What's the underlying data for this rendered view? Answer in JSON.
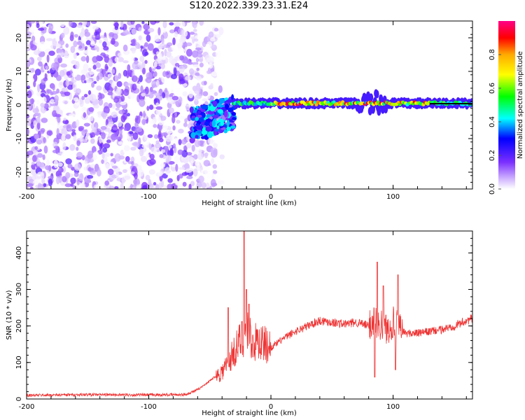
{
  "title": "S120.2022.339.23.31.E24",
  "colors": {
    "snr_line": "#ee3333",
    "axis": "#000000"
  },
  "chart_data": [
    {
      "type": "heatmap",
      "name": "spectrogram",
      "xlabel": "Height of straight line (km)",
      "ylabel": "Frequency (Hz)",
      "xlim": [
        -200,
        165
      ],
      "ylim": [
        -25,
        25
      ],
      "x_ticks": [
        -200,
        -100,
        0,
        100
      ],
      "y_ticks": [
        -20,
        -10,
        0,
        10,
        20
      ],
      "colorbar": {
        "label": "Normalized spectral amplitude",
        "range": [
          0,
          1
        ],
        "ticks": [
          0.0,
          0.2,
          0.4,
          0.6,
          0.8
        ],
        "tick_labels": [
          "0.0",
          "0.2",
          "0.4",
          "0.6",
          "0.8"
        ],
        "colormap": [
          "#ffffff",
          "#7b2fff",
          "#0000ff",
          "#00ffff",
          "#00ff00",
          "#ffff00",
          "#ff0000",
          "#ff0088"
        ]
      },
      "regions": [
        {
          "x_range": [
            -200,
            -65
          ],
          "description_level": "noise",
          "amplitude": 0.15
        },
        {
          "x_range": [
            -65,
            -30
          ],
          "freq_center": -6,
          "freq_spread": 6,
          "amplitude": 0.35
        },
        {
          "x_range": [
            -30,
            165
          ],
          "freq_center": 0.5,
          "freq_spread": 1.5,
          "amplitude": 0.75
        }
      ]
    },
    {
      "type": "line",
      "name": "snr",
      "xlabel": "Height of straight line (km)",
      "ylabel": "SNR (10 * v/v)",
      "xlim": [
        -200,
        165
      ],
      "ylim": [
        0,
        460
      ],
      "x_ticks": [
        -200,
        -100,
        0,
        100
      ],
      "y_ticks": [
        0,
        100,
        200,
        300,
        400
      ],
      "series": [
        {
          "x": [
            -200,
            -150,
            -100,
            -70,
            -60,
            -50,
            -40,
            -35,
            -30,
            -25,
            -22,
            -20,
            -15,
            -10,
            0,
            10,
            20,
            30,
            40,
            50,
            60,
            70,
            80,
            85,
            88,
            90,
            95,
            100,
            105,
            110,
            120,
            130,
            140,
            150,
            160,
            165
          ],
          "y": [
            10,
            12,
            11,
            12,
            25,
            50,
            75,
            100,
            130,
            160,
            175,
            200,
            150,
            160,
            140,
            165,
            185,
            200,
            215,
            210,
            205,
            210,
            200,
            220,
            200,
            210,
            190,
            210,
            195,
            180,
            180,
            185,
            190,
            200,
            215,
            220
          ],
          "spikes": [
            {
              "x": -22,
              "y": 460
            },
            {
              "x": -20,
              "y": 300
            },
            {
              "x": -18,
              "y": 260
            },
            {
              "x": -35,
              "y": 250
            },
            {
              "x": 87,
              "y": 375
            },
            {
              "x": 92,
              "y": 310
            },
            {
              "x": 85,
              "y": 60
            },
            {
              "x": 104,
              "y": 340
            },
            {
              "x": 102,
              "y": 80
            }
          ]
        }
      ]
    }
  ]
}
